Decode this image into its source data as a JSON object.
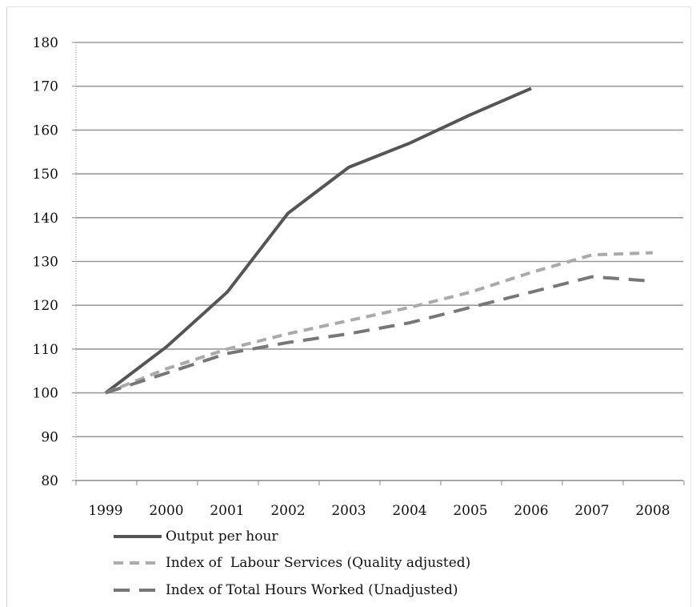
{
  "chart_data": {
    "type": "line",
    "x": [
      "1999",
      "2000",
      "2001",
      "2002",
      "2003",
      "2004",
      "2005",
      "2006",
      "2007",
      "2008"
    ],
    "ylim": [
      80,
      180
    ],
    "yticks": [
      "80",
      "90",
      "100",
      "110",
      "120",
      "130",
      "140",
      "150",
      "160",
      "170",
      "180"
    ],
    "grid": true,
    "legend_position": "bottom",
    "series": [
      {
        "name": "Output per hour",
        "style": "solid",
        "color": "#555555",
        "values": [
          100,
          110.5,
          123,
          141,
          151.5,
          157,
          163.5,
          169.5,
          null,
          null
        ]
      },
      {
        "name": "Index of  Labour Services (Quality adjusted)",
        "style": "short-dash",
        "color": "#aaaaaa",
        "values": [
          100,
          105.5,
          110,
          113.5,
          116.5,
          119.5,
          123,
          127.5,
          131.5,
          132
        ]
      },
      {
        "name": "Index of Total Hours Worked (Unadjusted)",
        "style": "long-dash",
        "color": "#777777",
        "values": [
          100,
          104.5,
          109,
          111.5,
          113.5,
          116,
          119.5,
          123,
          126.5,
          125.5
        ]
      }
    ]
  }
}
